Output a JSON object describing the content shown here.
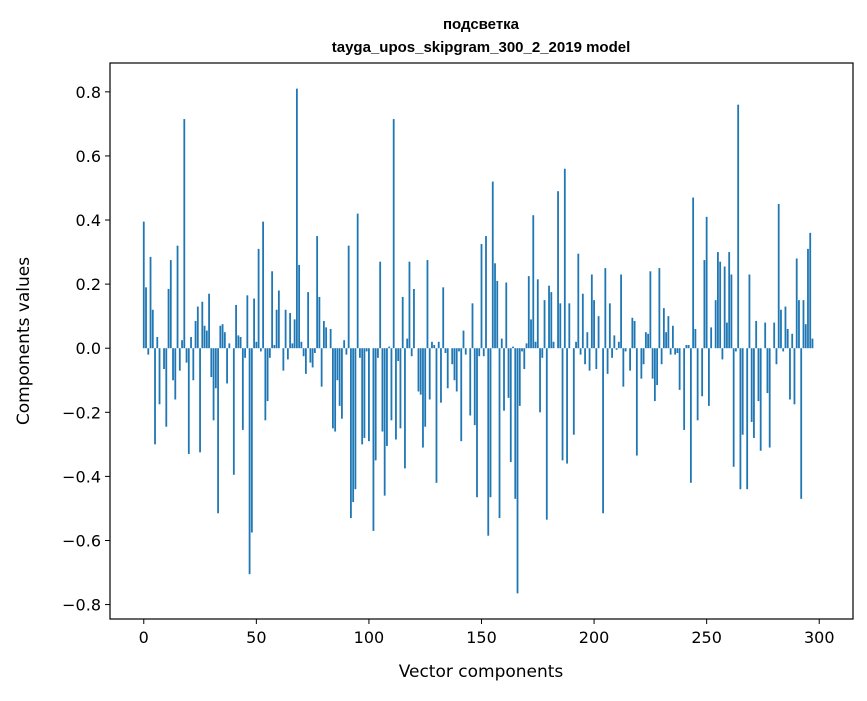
{
  "chart_data": {
    "type": "bar",
    "title": "подсветка",
    "subtitle": "tayga_upos_skipgram_300_2_2019 model",
    "xlabel": "Vector components",
    "ylabel": "Components values",
    "xlim": [
      -15,
      315
    ],
    "ylim": [
      -0.845,
      0.89
    ],
    "xticks": [
      0,
      50,
      100,
      150,
      200,
      250,
      300
    ],
    "xtick_labels": [
      "0",
      "50",
      "100",
      "150",
      "200",
      "250",
      "300"
    ],
    "yticks": [
      -0.8,
      -0.6,
      -0.4,
      -0.2,
      0.0,
      0.2,
      0.4,
      0.6,
      0.8
    ],
    "ytick_labels": [
      "−0.8",
      "−0.6",
      "−0.4",
      "−0.2",
      "0.0",
      "0.2",
      "0.4",
      "0.6",
      "0.8"
    ],
    "grid": false,
    "bar_color": "#1f77b4",
    "values": [
      0.395,
      0.19,
      -0.02,
      0.285,
      0.12,
      -0.3,
      0.035,
      -0.175,
      0.0,
      -0.065,
      -0.245,
      0.185,
      0.275,
      -0.1,
      -0.16,
      0.32,
      -0.07,
      0.025,
      0.715,
      -0.045,
      -0.33,
      0.035,
      -0.1,
      0.085,
      0.13,
      -0.325,
      0.145,
      0.07,
      0.055,
      0.17,
      -0.09,
      -0.225,
      -0.125,
      -0.515,
      0.07,
      0.075,
      0.05,
      -0.11,
      0.015,
      0.0,
      -0.395,
      0.135,
      0.04,
      0.035,
      -0.255,
      -0.03,
      0.165,
      -0.705,
      -0.575,
      0.155,
      0.02,
      0.31,
      -0.01,
      0.395,
      -0.225,
      -0.165,
      -0.03,
      0.24,
      0.01,
      0.12,
      0.18,
      0.0,
      -0.07,
      0.12,
      -0.035,
      0.11,
      0.015,
      0.09,
      0.81,
      0.26,
      0.02,
      -0.025,
      -0.08,
      0.175,
      -0.045,
      -0.06,
      -0.015,
      0.35,
      0.16,
      -0.12,
      0.085,
      0.065,
      0.0,
      0.06,
      -0.25,
      -0.26,
      -0.1,
      -0.18,
      -0.22,
      0.025,
      -0.02,
      0.32,
      -0.53,
      -0.48,
      -0.44,
      0.42,
      -0.03,
      -0.3,
      -0.28,
      -0.01,
      -0.29,
      0.0,
      -0.57,
      -0.35,
      -0.03,
      0.27,
      -0.26,
      -0.46,
      -0.305,
      0.005,
      -0.225,
      0.715,
      -0.285,
      -0.04,
      -0.25,
      0.16,
      -0.375,
      0.03,
      0.27,
      -0.025,
      0.185,
      0.0,
      -0.135,
      -0.145,
      -0.31,
      -0.245,
      0.275,
      -0.16,
      0.02,
      0.01,
      -0.42,
      0.02,
      -0.17,
      0.19,
      -0.015,
      -0.125,
      0.0,
      -0.05,
      -0.1,
      -0.135,
      -0.01,
      -0.29,
      0.055,
      -0.02,
      0.0,
      -0.21,
      0.14,
      -0.24,
      -0.465,
      -0.025,
      0.325,
      -0.025,
      0.35,
      -0.585,
      -0.465,
      0.52,
      0.265,
      0.21,
      -0.53,
      0.03,
      -0.195,
      0.205,
      -0.155,
      -0.355,
      0.005,
      -0.47,
      -0.765,
      -0.18,
      -0.01,
      -0.065,
      0.015,
      0.225,
      0.09,
      0.415,
      0.02,
      0.215,
      -0.2,
      -0.03,
      0.15,
      -0.535,
      0.195,
      0.175,
      0.02,
      0.0,
      0.49,
      0.14,
      -0.35,
      0.56,
      -0.36,
      0.14,
      0.0,
      -0.27,
      0.02,
      0.295,
      -0.02,
      0.17,
      -0.05,
      0.05,
      -0.07,
      0.23,
      0.15,
      -0.065,
      0.1,
      0.0,
      -0.515,
      0.25,
      -0.08,
      0.14,
      -0.03,
      0.04,
      -0.005,
      0.02,
      0.23,
      -0.12,
      -0.01,
      0.0,
      -0.07,
      0.095,
      0.085,
      -0.335,
      0.0,
      -0.095,
      -0.05,
      0.05,
      0.045,
      0.24,
      -0.095,
      -0.165,
      -0.115,
      0.25,
      -0.05,
      0.125,
      0.05,
      0.1,
      -0.02,
      0.07,
      -0.02,
      -0.015,
      -0.13,
      0.0,
      -0.255,
      0.01,
      0.01,
      -0.42,
      0.47,
      0.06,
      -0.225,
      0.0,
      -0.15,
      0.275,
      0.41,
      -0.18,
      0.065,
      0.0,
      0.15,
      0.3,
      0.27,
      -0.035,
      0.255,
      0.08,
      0.3,
      0.23,
      -0.37,
      -0.01,
      0.76,
      -0.44,
      -0.27,
      0.0,
      -0.44,
      0.23,
      -0.23,
      -0.28,
      0.085,
      -0.165,
      -0.32,
      0.0,
      0.08,
      -0.14,
      -0.31,
      0.0,
      0.08,
      -0.05,
      0.45,
      0.12,
      -0.01,
      0.13,
      0.06,
      -0.16,
      0.045,
      -0.175,
      0.28,
      0.15,
      -0.47,
      0.15,
      0.075,
      0.31,
      0.36,
      0.03
    ]
  }
}
